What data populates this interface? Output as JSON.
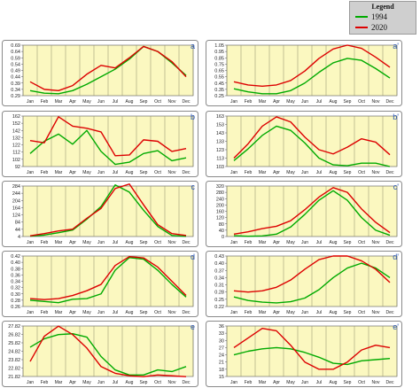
{
  "legend": {
    "title": "Legend",
    "items": [
      {
        "label": "1994",
        "color": "#00aa00"
      },
      {
        "label": "2020",
        "color": "#dd0000"
      }
    ]
  },
  "chart_data": [
    {
      "type": "line",
      "panel_label": "a",
      "categories": [
        "Jan",
        "Feb",
        "Mar",
        "Apr",
        "May",
        "Jun",
        "Jul",
        "Aug",
        "Sep",
        "Oct",
        "Nov",
        "Dec"
      ],
      "yticks": [
        "0.69",
        "0.64",
        "0.59",
        "0.54",
        "0.49",
        "0.44",
        "0.39",
        "0.34",
        "0.29"
      ],
      "ylim": [
        0.29,
        0.69
      ],
      "series": [
        {
          "name": "1994",
          "color": "#00aa00",
          "values": [
            0.33,
            0.31,
            0.305,
            0.33,
            0.38,
            0.44,
            0.5,
            0.58,
            0.68,
            0.64,
            0.55,
            0.45
          ]
        },
        {
          "name": "2020",
          "color": "#dd0000",
          "values": [
            0.4,
            0.34,
            0.33,
            0.37,
            0.46,
            0.53,
            0.51,
            0.59,
            0.68,
            0.64,
            0.56,
            0.44
          ]
        }
      ]
    },
    {
      "type": "line",
      "panel_label": "a'",
      "categories": [
        "Jan",
        "Feb",
        "Mar",
        "Apr",
        "May",
        "Jun",
        "Jul",
        "Aug",
        "Sep",
        "Oct",
        "Nov",
        "Dec"
      ],
      "yticks": [
        "1.05",
        "0.95",
        "0.85",
        "0.75",
        "0.65",
        "0.55",
        "0.45",
        "0.35",
        "0.25"
      ],
      "ylim": [
        0.25,
        1.05
      ],
      "series": [
        {
          "name": "1994",
          "color": "#00aa00",
          "values": [
            0.36,
            0.31,
            0.28,
            0.28,
            0.33,
            0.45,
            0.62,
            0.77,
            0.84,
            0.81,
            0.68,
            0.53
          ]
        },
        {
          "name": "2020",
          "color": "#dd0000",
          "values": [
            0.47,
            0.42,
            0.4,
            0.42,
            0.49,
            0.64,
            0.84,
            0.99,
            1.05,
            1.0,
            0.86,
            0.7
          ]
        }
      ]
    },
    {
      "type": "line",
      "panel_label": "b",
      "categories": [
        "Jan",
        "Feb",
        "Mar",
        "Apr",
        "May",
        "Jun",
        "Jul",
        "Aug",
        "Sep",
        "Oct",
        "Nov",
        "Dec"
      ],
      "yticks": [
        "162",
        "152",
        "142",
        "132",
        "122",
        "112",
        "102",
        "92"
      ],
      "ylim": [
        92,
        162
      ],
      "series": [
        {
          "name": "1994",
          "color": "#00aa00",
          "values": [
            110,
            127,
            137,
            123,
            142,
            113,
            95,
            98,
            110,
            114,
            100,
            104
          ]
        },
        {
          "name": "2020",
          "color": "#dd0000",
          "values": [
            128,
            125,
            161,
            148,
            145,
            140,
            107,
            108,
            129,
            127,
            113,
            117
          ]
        }
      ]
    },
    {
      "type": "line",
      "panel_label": "b'",
      "categories": [
        "Jan",
        "Feb",
        "Mar",
        "Apr",
        "May",
        "Jun",
        "Jul",
        "Aug",
        "Sep",
        "Oct",
        "Nov",
        "Dec"
      ],
      "yticks": [
        "163",
        "153",
        "143",
        "133",
        "123",
        "113",
        "103"
      ],
      "ylim": [
        103,
        163
      ],
      "series": [
        {
          "name": "1994",
          "color": "#00aa00",
          "values": [
            110,
            124,
            140,
            151,
            146,
            131,
            113,
            105,
            104,
            107,
            107,
            103
          ]
        },
        {
          "name": "2020",
          "color": "#dd0000",
          "values": [
            113,
            130,
            151,
            162,
            156,
            138,
            123,
            118,
            126,
            136,
            132,
            117
          ]
        }
      ]
    },
    {
      "type": "line",
      "panel_label": "c",
      "categories": [
        "Jan",
        "Feb",
        "Mar",
        "Apr",
        "May",
        "Jun",
        "Jul",
        "Aug",
        "Sep",
        "Oct",
        "Nov",
        "Dec"
      ],
      "yticks": [
        "284",
        "244",
        "204",
        "164",
        "124",
        "84",
        "44",
        "4"
      ],
      "ylim": [
        4,
        284
      ],
      "series": [
        {
          "name": "1994",
          "color": "#00aa00",
          "values": [
            6,
            12,
            25,
            40,
            100,
            170,
            290,
            250,
            150,
            60,
            10,
            5
          ]
        },
        {
          "name": "2020",
          "color": "#dd0000",
          "values": [
            8,
            20,
            35,
            45,
            105,
            160,
            270,
            295,
            180,
            70,
            20,
            10
          ]
        }
      ]
    },
    {
      "type": "line",
      "panel_label": "c'",
      "categories": [
        "Jan",
        "Feb",
        "Mar",
        "Apr",
        "May",
        "Jun",
        "Jul",
        "Aug",
        "Sep",
        "Oct",
        "Nov",
        "Dec"
      ],
      "yticks": [
        "320",
        "280",
        "240",
        "200",
        "160",
        "120",
        "80",
        "40",
        "0"
      ],
      "ylim": [
        0,
        320
      ],
      "series": [
        {
          "name": "1994",
          "color": "#00aa00",
          "values": [
            5,
            2,
            4,
            15,
            60,
            140,
            230,
            290,
            230,
            120,
            40,
            8
          ]
        },
        {
          "name": "2020",
          "color": "#dd0000",
          "values": [
            15,
            30,
            50,
            65,
            100,
            170,
            250,
            310,
            280,
            175,
            90,
            25
          ]
        }
      ]
    },
    {
      "type": "line",
      "panel_label": "d",
      "categories": [
        "Jan",
        "Feb",
        "Mar",
        "Apr",
        "May",
        "Jun",
        "Jul",
        "Aug",
        "Sep",
        "Oct",
        "Nov",
        "Dec"
      ],
      "yticks": [
        "0.42",
        "0.40",
        "0.38",
        "0.36",
        "0.34",
        "0.32",
        "0.30",
        "0.28",
        "0.26"
      ],
      "ylim": [
        0.26,
        0.42
      ],
      "series": [
        {
          "name": "1994",
          "color": "#00aa00",
          "values": [
            0.28,
            0.276,
            0.272,
            0.283,
            0.285,
            0.3,
            0.375,
            0.415,
            0.41,
            0.375,
            0.33,
            0.29
          ]
        },
        {
          "name": "2020",
          "color": "#dd0000",
          "values": [
            0.285,
            0.282,
            0.285,
            0.295,
            0.31,
            0.33,
            0.39,
            0.418,
            0.414,
            0.385,
            0.34,
            0.295
          ]
        }
      ]
    },
    {
      "type": "line",
      "panel_label": "d'",
      "categories": [
        "Jan",
        "Feb",
        "Mar",
        "Apr",
        "May",
        "Jun",
        "Jul",
        "Aug",
        "Sep",
        "Oct",
        "Nov",
        "Dec"
      ],
      "yticks": [
        "0.43",
        "0.40",
        "0.37",
        "0.34",
        "0.31",
        "0.28",
        "0.25",
        "0.22"
      ],
      "ylim": [
        0.22,
        0.43
      ],
      "series": [
        {
          "name": "1994",
          "color": "#00aa00",
          "values": [
            0.26,
            0.245,
            0.238,
            0.235,
            0.24,
            0.255,
            0.29,
            0.34,
            0.38,
            0.4,
            0.38,
            0.34
          ]
        },
        {
          "name": "2020",
          "color": "#dd0000",
          "values": [
            0.285,
            0.28,
            0.285,
            0.3,
            0.33,
            0.375,
            0.415,
            0.43,
            0.43,
            0.41,
            0.375,
            0.32
          ]
        }
      ]
    },
    {
      "type": "line",
      "panel_label": "e",
      "categories": [
        "Jan",
        "Feb",
        "Mar",
        "Apr",
        "May",
        "Jun",
        "Jul",
        "Aug",
        "Sep",
        "Oct",
        "Nov",
        "Dec"
      ],
      "yticks": [
        "27.82",
        "26.82",
        "25.82",
        "24.82",
        "23.82",
        "22.82",
        "21.82"
      ],
      "ylim": [
        21.82,
        27.82
      ],
      "series": [
        {
          "name": "1994",
          "color": "#00aa00",
          "values": [
            25.3,
            26.3,
            26.8,
            26.9,
            26.5,
            24.2,
            22.6,
            22.0,
            22.0,
            22.6,
            22.4,
            23.0
          ]
        },
        {
          "name": "2020",
          "color": "#dd0000",
          "values": [
            23.6,
            26.6,
            27.8,
            26.8,
            25.2,
            23.0,
            22.2,
            21.9,
            21.8,
            22.0,
            21.9,
            21.8
          ]
        }
      ]
    },
    {
      "type": "line",
      "panel_label": "e'",
      "categories": [
        "Jan",
        "Feb",
        "Mar",
        "Apr",
        "May",
        "Jun",
        "Jul",
        "Aug",
        "Sep",
        "Oct",
        "Nov",
        "Dec"
      ],
      "yticks": [
        "36",
        "33",
        "30",
        "27",
        "24",
        "21",
        "18",
        "15"
      ],
      "ylim": [
        15,
        36
      ],
      "series": [
        {
          "name": "1994",
          "color": "#00aa00",
          "values": [
            24,
            25.5,
            26.5,
            27,
            26.5,
            25,
            23,
            20.5,
            20,
            21.5,
            22,
            22.5
          ]
        },
        {
          "name": "2020",
          "color": "#dd0000",
          "values": [
            27,
            31,
            35,
            34,
            28,
            21,
            18,
            18,
            21,
            26,
            28,
            27
          ]
        }
      ]
    }
  ]
}
